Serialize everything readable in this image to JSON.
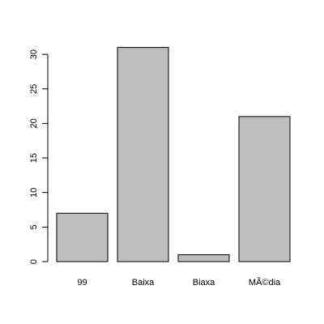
{
  "chart_data": {
    "type": "bar",
    "categories": [
      "99",
      "Baixa",
      "Biaxa",
      "MÃ©dia"
    ],
    "values": [
      7,
      31,
      1,
      21
    ],
    "title": "",
    "xlabel": "",
    "ylabel": "",
    "ylim": [
      0,
      31
    ],
    "yticks": [
      0,
      5,
      10,
      15,
      20,
      25,
      30
    ],
    "grid": false,
    "legend": "none",
    "bar_color": "#bebebe",
    "bar_edge_color": "#000000"
  }
}
